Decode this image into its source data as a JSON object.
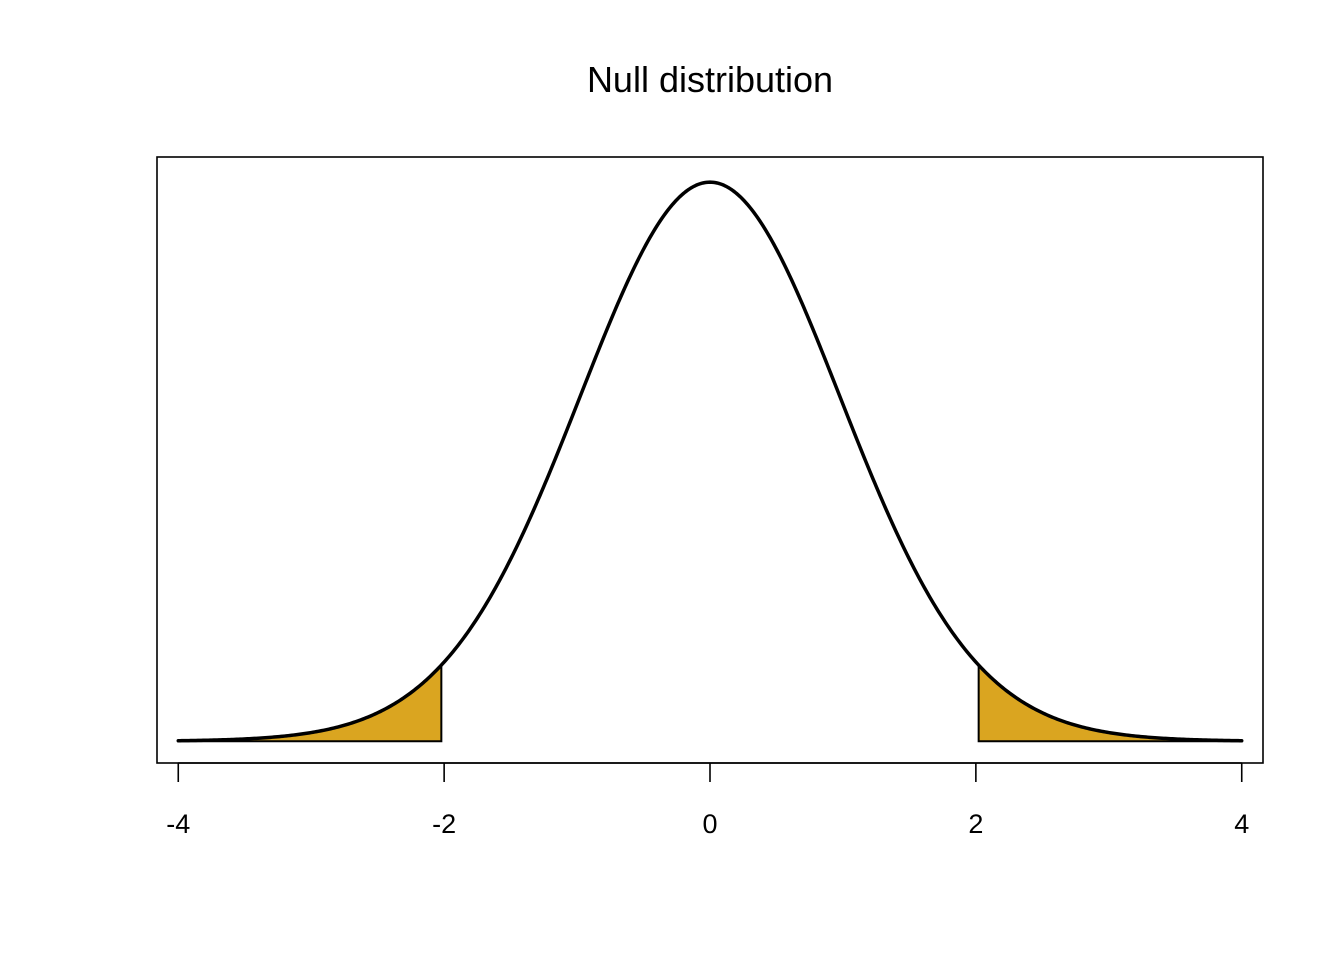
{
  "chart_data": {
    "type": "area",
    "title": "Null distribution",
    "xlabel": "",
    "ylabel": "",
    "xlim": [
      -4.16,
      4.16
    ],
    "ylim": [
      -0.0154,
      0.4143
    ],
    "x_ticks": [
      -4,
      -2,
      0,
      2,
      4
    ],
    "x_tick_labels": [
      "-4",
      "-2",
      "0",
      "2",
      "4"
    ],
    "y_axis_shown": false,
    "grid": false,
    "legend": "none",
    "curve": {
      "distribution": "t",
      "df": 40,
      "x_range": [
        -4,
        4
      ]
    },
    "shaded_regions": [
      {
        "from": -4,
        "to": -2.021
      },
      {
        "from": 2.021,
        "to": 4
      }
    ],
    "colors": {
      "curve": "#000000",
      "shade": "#DAA520",
      "frame": "#000000"
    }
  }
}
